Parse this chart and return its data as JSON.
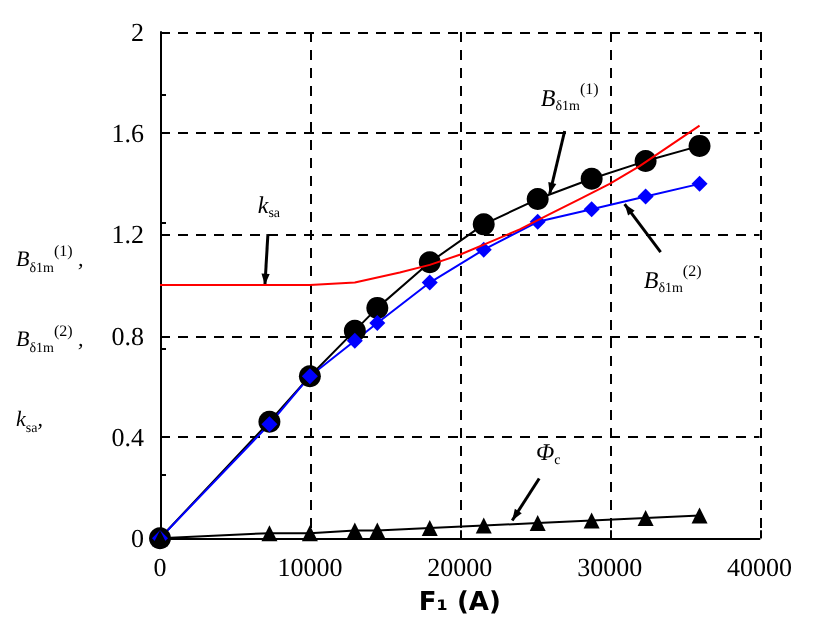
{
  "chart_data": {
    "type": "line",
    "xlabel": "F₁ (A)",
    "ylabel": "B$_{δ1m}$$^{(1)}$ ,\nB$_{δ1m}$$^{(2)}$ ,\nk$_{sa}$,",
    "x": [
      0,
      7300,
      10000,
      13000,
      14500,
      18000,
      21600,
      25200,
      28800,
      32400,
      36000
    ],
    "series": [
      {
        "color": "#000000",
        "marker": "circle",
        "values": [
          0,
          0.46,
          0.64,
          0.82,
          0.91,
          1.09,
          1.24,
          1.34,
          1.42,
          1.49,
          1.55
        ]
      },
      {
        "color": "#0000ff",
        "marker": "diamond",
        "values": [
          0,
          0.45,
          0.64,
          0.78,
          0.85,
          1.01,
          1.14,
          1.25,
          1.3,
          1.35,
          1.4
        ]
      },
      {
        "color": "#000000",
        "marker": "triangle",
        "values": [
          0,
          0.02,
          0.02,
          0.03,
          0.03,
          0.04,
          0.05,
          0.06,
          0.07,
          0.08,
          0.09
        ]
      },
      {
        "color": "#ff0000",
        "marker": "none",
        "x": [
          0,
          5000,
          10000,
          13000,
          16000,
          18000,
          20000,
          22000,
          24000,
          26000,
          28000,
          30000,
          32000,
          34000,
          36000
        ],
        "values": [
          1.0,
          1.0,
          1.0,
          1.01,
          1.05,
          1.08,
          1.12,
          1.17,
          1.22,
          1.28,
          1.34,
          1.4,
          1.47,
          1.55,
          1.63
        ]
      }
    ],
    "annotations": [
      {
        "text": "k$_{sa}$",
        "x": 7000,
        "y": 1.0
      },
      {
        "text": "B$_{δ1m}$$^{(1)}$",
        "x": 26000,
        "y": 1.36
      },
      {
        "text": "B$_{δ1m}$$^{(2)}$",
        "x": 31000,
        "y": 1.32
      },
      {
        "text": "Φ$_{c}$",
        "x": 23500,
        "y": 0.07
      }
    ],
    "xlim": [
      0,
      40000
    ],
    "xticks": [
      0,
      10000,
      20000,
      30000,
      40000
    ],
    "ylim": [
      0,
      2
    ],
    "yticks": [
      0,
      0.4,
      0.8,
      1.2,
      1.6,
      2
    ],
    "grid": true
  }
}
